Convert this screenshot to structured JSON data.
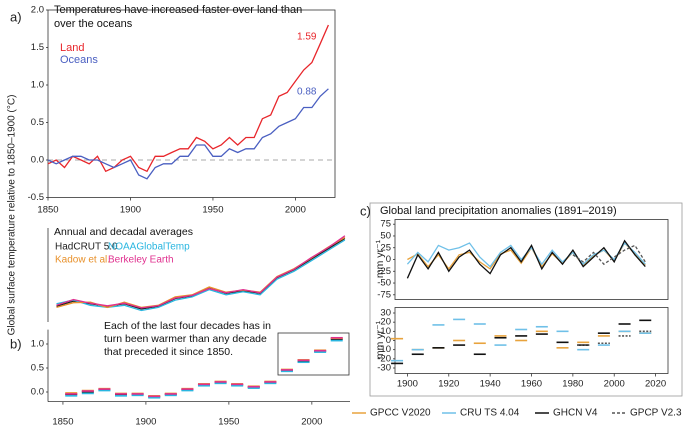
{
  "chart_data": [
    {
      "type": "line",
      "panel_label": "a)",
      "title": "Temperatures have increased faster over land than over the oceans",
      "ylabel": "Global surface temperature relative to 1850–1900 (°C)",
      "xlim": [
        1850,
        2024
      ],
      "ylim": [
        -0.5,
        2.0
      ],
      "xticks": [
        1850,
        1900,
        1950,
        2000
      ],
      "yticks": [
        {
          "value": -0.5,
          "label": "-0.5"
        },
        {
          "value": 0,
          "label": "0.0"
        },
        {
          "value": 0.5,
          "label": "0.5"
        },
        {
          "value": 1.0,
          "label": "1.0"
        },
        {
          "value": 1.5,
          "label": "1.5"
        },
        {
          "value": 2.0,
          "label": "2.0"
        }
      ],
      "zero_line": true,
      "x": [
        1850,
        1855,
        1860,
        1865,
        1870,
        1875,
        1880,
        1885,
        1890,
        1895,
        1900,
        1905,
        1910,
        1915,
        1920,
        1925,
        1930,
        1935,
        1940,
        1945,
        1950,
        1955,
        1960,
        1965,
        1970,
        1975,
        1980,
        1985,
        1990,
        1995,
        2000,
        2005,
        2010,
        2015,
        2020
      ],
      "series": [
        {
          "name": "Land",
          "color": "#e8262b",
          "values": [
            -0.05,
            0,
            -0.1,
            0.05,
            0,
            -0.05,
            0.05,
            -0.15,
            -0.1,
            0,
            0.05,
            -0.1,
            -0.15,
            0.05,
            0.05,
            0.1,
            0.15,
            0.15,
            0.3,
            0.25,
            0.15,
            0.2,
            0.3,
            0.2,
            0.3,
            0.3,
            0.55,
            0.6,
            0.85,
            0.9,
            1.05,
            1.2,
            1.3,
            1.55,
            1.8
          ]
        },
        {
          "name": "Oceans",
          "color": "#4a5fc1",
          "values": [
            0,
            -0.05,
            0,
            0.05,
            0.05,
            0,
            0,
            -0.05,
            -0.1,
            -0.05,
            0,
            -0.2,
            -0.25,
            -0.1,
            -0.05,
            -0.05,
            0.05,
            0.05,
            0.2,
            0.2,
            0.05,
            0.05,
            0.15,
            0.1,
            0.15,
            0.15,
            0.3,
            0.35,
            0.45,
            0.5,
            0.55,
            0.7,
            0.7,
            0.85,
            0.95
          ]
        }
      ],
      "annotations": [
        "1.59",
        "0.88"
      ]
    },
    {
      "type": "line",
      "title": "Annual and decadal averages",
      "xlim": [
        1845,
        2023
      ],
      "ylim": [
        -0.4,
        1.4
      ],
      "x": [
        1850,
        1860,
        1870,
        1880,
        1890,
        1900,
        1910,
        1920,
        1930,
        1940,
        1950,
        1960,
        1970,
        1980,
        1990,
        2000,
        2010,
        2020
      ],
      "series": [
        {
          "name": "HadCRUT 5.0",
          "color": "#222222",
          "values": [
            -0.1,
            0,
            -0.05,
            -0.1,
            -0.05,
            -0.15,
            -0.1,
            0.05,
            0.1,
            0.25,
            0.15,
            0.2,
            0.15,
            0.45,
            0.6,
            0.8,
            1.0,
            1.2
          ]
        },
        {
          "name": "NOAAGlobalTemp",
          "color": "#29b6e0",
          "values": [
            -0.05,
            0.02,
            -0.08,
            -0.12,
            -0.08,
            -0.18,
            -0.12,
            0.02,
            0.08,
            0.22,
            0.12,
            0.18,
            0.12,
            0.42,
            0.57,
            0.77,
            0.97,
            1.17
          ]
        },
        {
          "name": "Kadow et al.",
          "color": "#e8912b",
          "values": [
            -0.12,
            -0.03,
            -0.02,
            -0.12,
            -0.02,
            -0.12,
            -0.08,
            0.08,
            0.12,
            0.27,
            0.17,
            0.21,
            0.17,
            0.47,
            0.62,
            0.82,
            1.03,
            1.22
          ]
        },
        {
          "name": "Berkeley Earth",
          "color": "#e0308f",
          "values": [
            -0.08,
            0.03,
            -0.04,
            -0.09,
            -0.04,
            -0.13,
            -0.09,
            0.06,
            0.11,
            0.24,
            0.16,
            0.22,
            0.16,
            0.46,
            0.61,
            0.83,
            1.02,
            1.25
          ]
        }
      ]
    },
    {
      "type": "segment",
      "panel_label": "b)",
      "annotation": "Each of the last four decades has in turn been warmer than any decade that preceded it since 1850.",
      "xlim": [
        1841,
        2023
      ],
      "ylim": [
        -0.2,
        1.3
      ],
      "xticks": [
        1850,
        1900,
        1950,
        2000
      ],
      "yticks": [
        {
          "value": 0,
          "label": "0.0"
        },
        {
          "value": 0.5,
          "label": "0.5"
        },
        {
          "value": 1.0,
          "label": "1.0"
        }
      ],
      "x": [
        1855,
        1865,
        1875,
        1885,
        1895,
        1905,
        1915,
        1925,
        1935,
        1945,
        1955,
        1965,
        1975,
        1985,
        1995,
        2005,
        2015
      ],
      "series": [
        {
          "color": "#222222",
          "values": [
            -0.05,
            0,
            0.05,
            -0.05,
            -0.05,
            -0.1,
            -0.05,
            0.05,
            0.15,
            0.2,
            0.15,
            0.1,
            0.2,
            0.45,
            0.65,
            0.85,
            1.1
          ]
        },
        {
          "color": "#29b6e0",
          "values": [
            -0.08,
            -0.03,
            0.03,
            -0.08,
            -0.07,
            -0.12,
            -0.07,
            0.03,
            0.13,
            0.18,
            0.13,
            0.08,
            0.18,
            0.43,
            0.62,
            0.83,
            1.07
          ]
        },
        {
          "color": "#e8912b",
          "values": [
            -0.02,
            0.03,
            0.07,
            -0.03,
            -0.03,
            -0.08,
            -0.03,
            0.07,
            0.17,
            0.22,
            0.17,
            0.12,
            0.22,
            0.47,
            0.67,
            0.87,
            1.12
          ]
        },
        {
          "color": "#e0308f",
          "values": [
            -0.04,
            0.02,
            0.06,
            -0.04,
            -0.04,
            -0.09,
            -0.04,
            0.06,
            0.16,
            0.21,
            0.16,
            0.11,
            0.21,
            0.46,
            0.66,
            0.86,
            1.13
          ]
        }
      ]
    },
    {
      "type": "line",
      "panel_label": "c)",
      "title": "Global land precipitation anomalies (1891–2019)",
      "ylabel": "mm yr⁻¹",
      "xlim": [
        1894,
        2026
      ],
      "ylim": [
        -85,
        85
      ],
      "yticks": [
        75,
        50,
        25,
        0,
        -25,
        -50,
        -75
      ],
      "x": [
        1900,
        1905,
        1910,
        1915,
        1920,
        1925,
        1930,
        1935,
        1940,
        1945,
        1950,
        1955,
        1960,
        1965,
        1970,
        1975,
        1980,
        1985,
        1990,
        1995,
        2000,
        2005,
        2010,
        2015
      ],
      "series": [
        {
          "name": "GPCC V2020",
          "color": "#e8a33d",
          "values": [
            0,
            12,
            -15,
            10,
            -20,
            10,
            15,
            -5,
            -20,
            12,
            20,
            -8,
            25,
            -15,
            12,
            -8,
            15,
            -12,
            8,
            20,
            -3,
            35,
            12,
            -12
          ]
        },
        {
          "name": "CRU TS 4.04",
          "color": "#6fc0e8",
          "values": [
            -10,
            15,
            -5,
            30,
            20,
            25,
            35,
            5,
            -15,
            15,
            30,
            0,
            25,
            -10,
            20,
            -5,
            15,
            -10,
            10,
            20,
            0,
            35,
            15,
            -10
          ]
        },
        {
          "name": "GHCN V4",
          "color": "#111111",
          "values": [
            -40,
            10,
            -20,
            15,
            -25,
            5,
            20,
            -10,
            -30,
            10,
            25,
            -5,
            30,
            -20,
            15,
            -10,
            20,
            -15,
            5,
            25,
            -5,
            40,
            10,
            -15
          ]
        },
        {
          "name": "GPCP V2.3",
          "color": "#555555",
          "dashed": true,
          "values": [
            null,
            null,
            null,
            null,
            null,
            null,
            null,
            null,
            null,
            null,
            null,
            null,
            null,
            null,
            null,
            null,
            10,
            -5,
            15,
            -10,
            5,
            20,
            30,
            -5
          ]
        }
      ]
    },
    {
      "type": "segment",
      "ylabel": "mm yr⁻¹",
      "xlim": [
        1894,
        2026
      ],
      "ylim": [
        -36,
        36
      ],
      "xticks": [
        1900,
        1920,
        1940,
        1960,
        1980,
        2000,
        2020
      ],
      "yticks": [
        30,
        20,
        10,
        0,
        -10,
        -20,
        -30
      ],
      "x": [
        1895,
        1905,
        1915,
        1925,
        1935,
        1945,
        1955,
        1965,
        1975,
        1985,
        1995,
        2005,
        2015
      ],
      "series": [
        {
          "color": "#e8a33d",
          "values": [
            2,
            -10,
            -8,
            0,
            -3,
            5,
            0,
            10,
            -8,
            -2,
            5,
            10,
            8
          ]
        },
        {
          "color": "#6fc0e8",
          "values": [
            -22,
            -10,
            17,
            23,
            18,
            -5,
            12,
            15,
            10,
            -10,
            -5,
            10,
            8
          ]
        },
        {
          "color": "#111111",
          "values": [
            -25,
            -15,
            -8,
            -5,
            -15,
            3,
            5,
            7,
            -2,
            -5,
            8,
            18,
            22
          ]
        },
        {
          "color": "#555555",
          "dashed": true,
          "values": [
            null,
            null,
            null,
            null,
            null,
            null,
            null,
            null,
            null,
            -5,
            -3,
            5,
            10
          ]
        }
      ]
    }
  ]
}
